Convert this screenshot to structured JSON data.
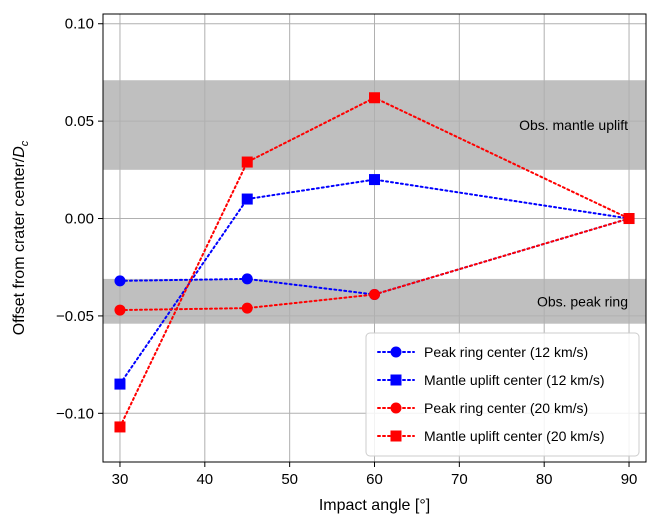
{
  "chart_data": {
    "type": "line",
    "x": [
      30,
      45,
      60,
      90
    ],
    "xlabel": "Impact angle [°]",
    "ylabel_main": "Offset from crater center/",
    "ylabel_var": "D",
    "ylabel_sub": "c",
    "xlim": [
      28,
      92
    ],
    "ylim": [
      -0.125,
      0.105
    ],
    "xticks": [
      30,
      40,
      50,
      60,
      70,
      80,
      90
    ],
    "yticks": [
      -0.1,
      -0.05,
      0.0,
      0.05,
      0.1
    ],
    "ytick_labels": [
      "−0.10",
      "−0.05",
      "0.00",
      "0.05",
      "0.10"
    ],
    "grid": true,
    "legend_position": "lower-right",
    "bands": [
      {
        "label": "Obs. mantle uplift",
        "range": [
          0.025,
          0.071
        ],
        "color": "#bfbfbf"
      },
      {
        "label": "Obs. peak ring",
        "range": [
          -0.054,
          -0.031
        ],
        "color": "#bfbfbf"
      }
    ],
    "series": [
      {
        "name": "Peak ring center (12 km/s)",
        "values": [
          -0.032,
          -0.031,
          -0.039,
          0.0
        ],
        "color": "#0000ff",
        "marker": "circle"
      },
      {
        "name": "Mantle uplift center (12 km/s)",
        "values": [
          -0.085,
          0.01,
          0.02,
          0.0
        ],
        "color": "#0000ff",
        "marker": "square"
      },
      {
        "name": "Peak ring center (20 km/s)",
        "values": [
          -0.047,
          -0.046,
          -0.039,
          0.0
        ],
        "color": "#ff0000",
        "marker": "circle"
      },
      {
        "name": "Mantle uplift center (20 km/s)",
        "values": [
          -0.107,
          0.029,
          0.062,
          0.0
        ],
        "color": "#ff0000",
        "marker": "square"
      }
    ]
  }
}
